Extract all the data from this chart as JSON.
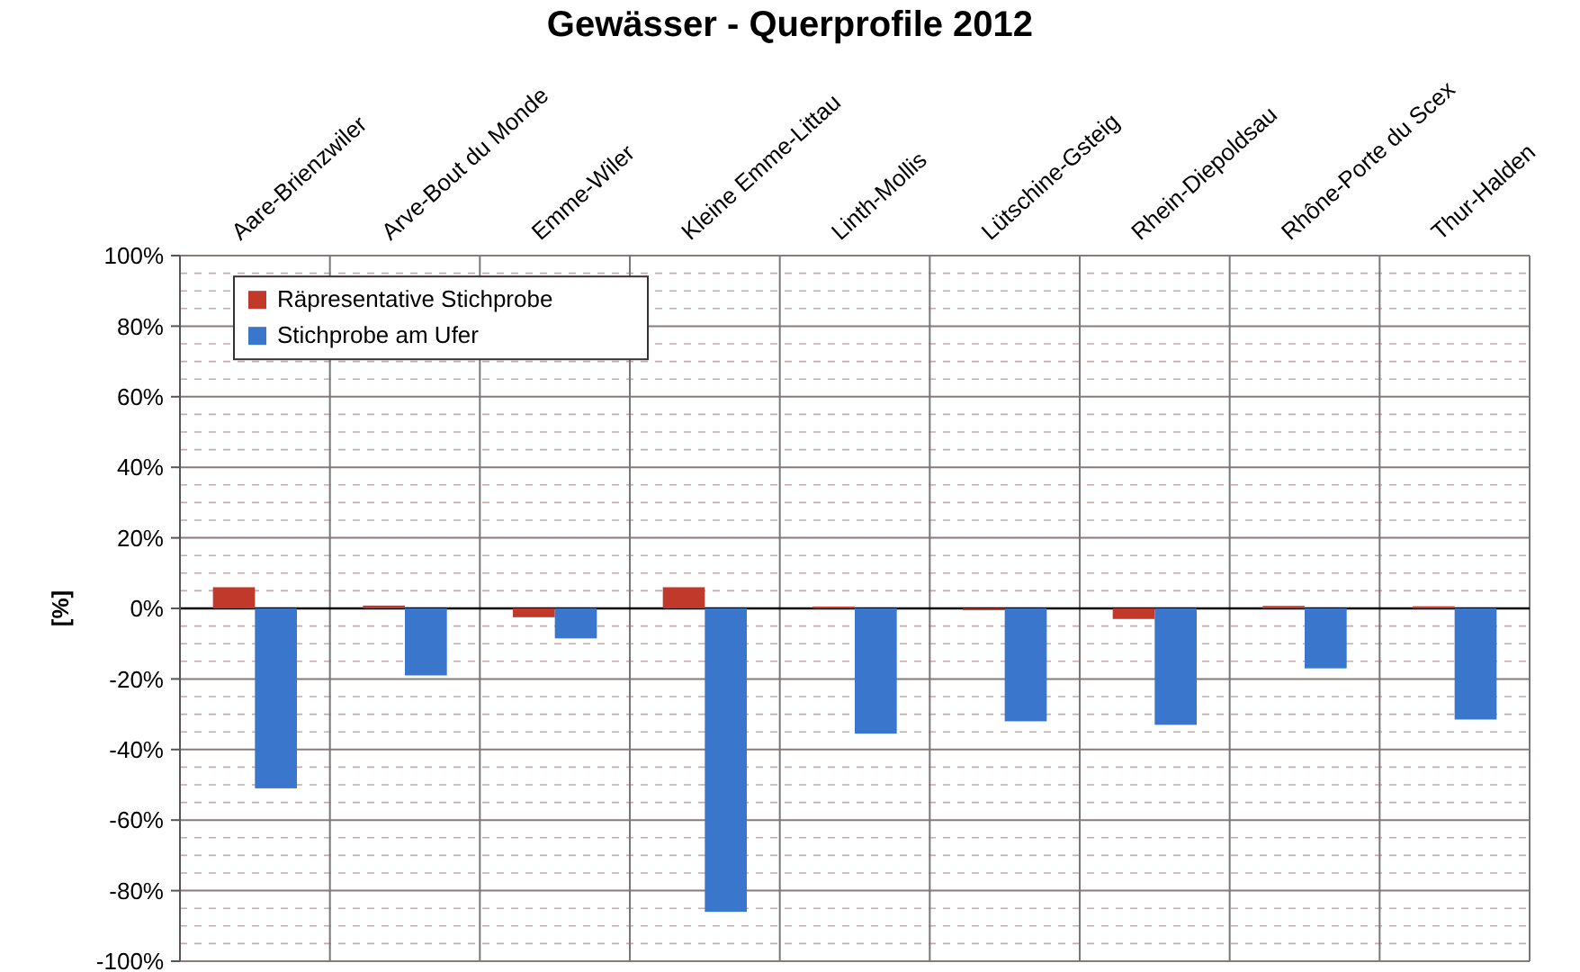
{
  "chart_data": {
    "type": "bar",
    "title": "Gewässer - Querprofile 2012",
    "ylabel": "[%]",
    "categories": [
      "Aare-Brienzwiler",
      "Arve-Bout du Monde",
      "Emme-Wiler",
      "Kleine Emme-Littau",
      "Linth-Mollis",
      "Lütschine-Gsteig",
      "Rhein-Diepoldsau",
      "Rhône-Porte du Scex",
      "Thur-Halden"
    ],
    "series": [
      {
        "name": "Räpresentative Stichprobe",
        "color": "#c0392b",
        "values": [
          6,
          0.8,
          -2.5,
          6,
          0.5,
          -0.5,
          -3,
          0.7,
          0.6
        ]
      },
      {
        "name": "Stichprobe am Ufer",
        "color": "#3a76cc",
        "values": [
          -51,
          -19,
          -8.5,
          -86,
          -35.5,
          -32,
          -33,
          -17,
          -31.5
        ]
      }
    ],
    "ylim": [
      -100,
      100
    ],
    "yticks": [
      {
        "value": -100,
        "label": "-100%"
      },
      {
        "value": -80,
        "label": "-80%"
      },
      {
        "value": -60,
        "label": "-60%"
      },
      {
        "value": -40,
        "label": "-40%"
      },
      {
        "value": -20,
        "label": "-20%"
      },
      {
        "value": 0,
        "label": "0%"
      },
      {
        "value": 20,
        "label": "20%"
      },
      {
        "value": 40,
        "label": "40%"
      },
      {
        "value": 60,
        "label": "60%"
      },
      {
        "value": 80,
        "label": "80%"
      },
      {
        "value": 100,
        "label": "100%"
      }
    ],
    "grid": true,
    "legend": "top left"
  }
}
